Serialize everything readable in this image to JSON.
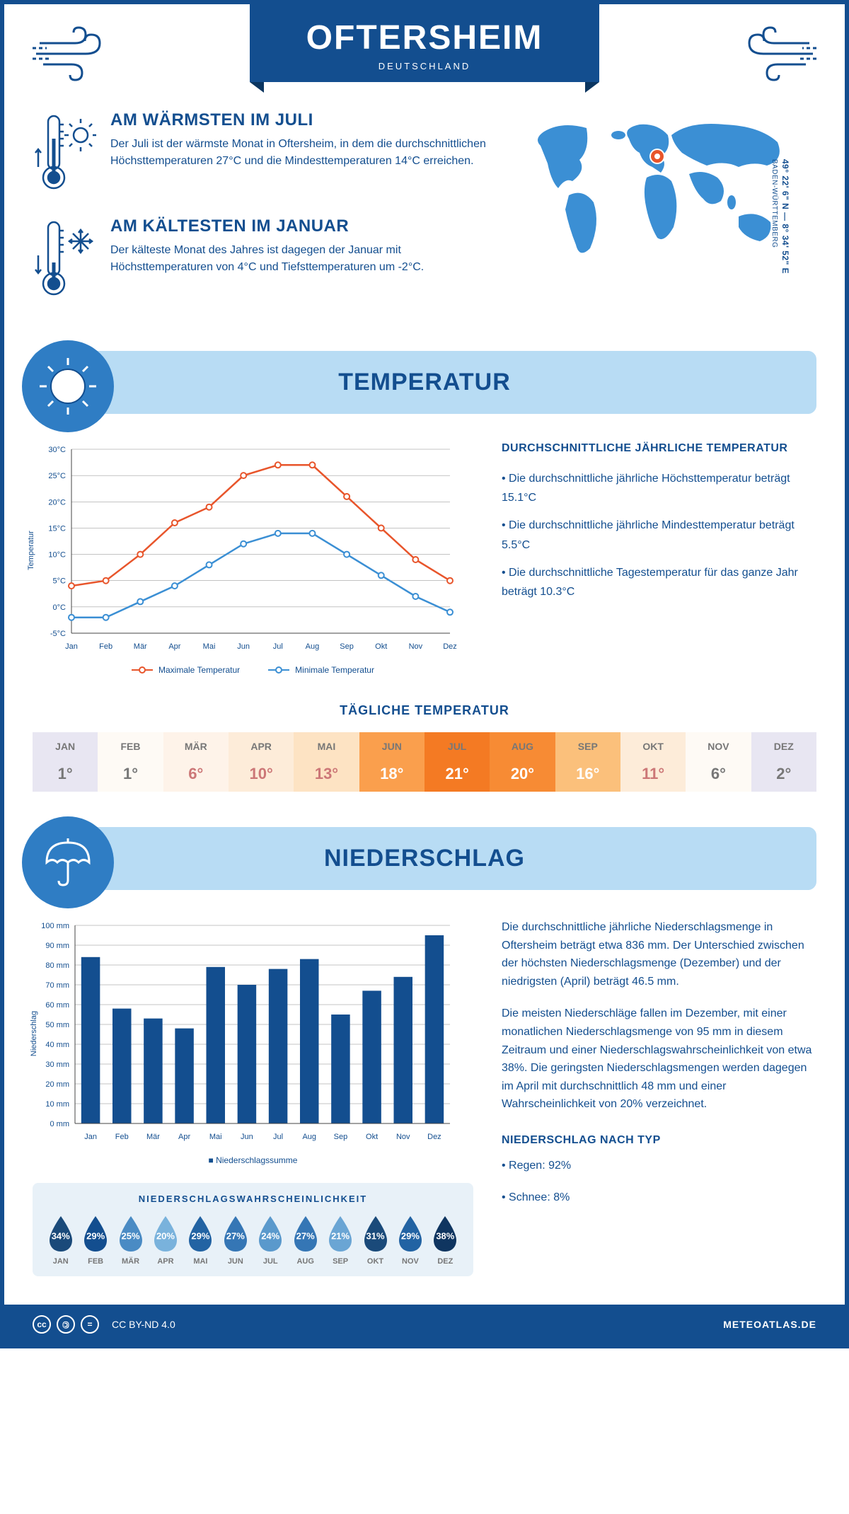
{
  "header": {
    "city": "OFTERSHEIM",
    "country": "DEUTSCHLAND"
  },
  "coords": {
    "line": "49° 22' 6\" N — 8° 34' 52\" E",
    "region": "BADEN-WÜRTTEMBERG"
  },
  "warm": {
    "title": "AM WÄRMSTEN IM JULI",
    "text": "Der Juli ist der wärmste Monat in Oftersheim, in dem die durchschnittlichen Höchsttemperaturen 27°C und die Mindesttemperaturen 14°C erreichen."
  },
  "cold": {
    "title": "AM KÄLTESTEN IM JANUAR",
    "text": "Der kälteste Monat des Jahres ist dagegen der Januar mit Höchsttemperaturen von 4°C und Tiefsttemperaturen um -2°C."
  },
  "sections": {
    "temp": "TEMPERATUR",
    "precip": "NIEDERSCHLAG"
  },
  "temp_chart": {
    "months": [
      "Jan",
      "Feb",
      "Mär",
      "Apr",
      "Mai",
      "Jun",
      "Jul",
      "Aug",
      "Sep",
      "Okt",
      "Nov",
      "Dez"
    ],
    "max": [
      4,
      5,
      10,
      16,
      19,
      25,
      27,
      27,
      21,
      15,
      9,
      5
    ],
    "min": [
      -2,
      -2,
      1,
      4,
      8,
      12,
      14,
      14,
      10,
      6,
      2,
      -1
    ],
    "ymin": -5,
    "ymax": 30,
    "ystep": 5,
    "max_color": "#e8552b",
    "min_color": "#3b8fd4",
    "axis_color": "#444",
    "grid_color": "#888",
    "ylabel": "Temperatur",
    "legend_max": "Maximale Temperatur",
    "legend_min": "Minimale Temperatur"
  },
  "temp_text": {
    "title": "DURCHSCHNITTLICHE JÄHRLICHE TEMPERATUR",
    "b1": "• Die durchschnittliche jährliche Höchsttemperatur beträgt 15.1°C",
    "b2": "• Die durchschnittliche jährliche Mindesttemperatur beträgt 5.5°C",
    "b3": "• Die durchschnittliche Tagestemperatur für das ganze Jahr beträgt 10.3°C"
  },
  "daily": {
    "title": "TÄGLICHE TEMPERATUR",
    "months": [
      "JAN",
      "FEB",
      "MÄR",
      "APR",
      "MAI",
      "JUN",
      "JUL",
      "AUG",
      "SEP",
      "OKT",
      "NOV",
      "DEZ"
    ],
    "values": [
      "1°",
      "1°",
      "6°",
      "10°",
      "13°",
      "18°",
      "21°",
      "20°",
      "16°",
      "11°",
      "6°",
      "2°"
    ],
    "bg_colors": [
      "#e8e6f2",
      "#fefaf5",
      "#fef3e9",
      "#fdecd9",
      "#fde3c3",
      "#fa9f4d",
      "#f47a23",
      "#f78b34",
      "#fbc07b",
      "#fdecd9",
      "#fefaf5",
      "#e8e6f2"
    ],
    "fg_colors": [
      "#777",
      "#777",
      "#c77",
      "#c77",
      "#c77",
      "#fff",
      "#fff",
      "#fff",
      "#fff",
      "#c77",
      "#777",
      "#777"
    ]
  },
  "precip_chart": {
    "months": [
      "Jan",
      "Feb",
      "Mär",
      "Apr",
      "Mai",
      "Jun",
      "Jul",
      "Aug",
      "Sep",
      "Okt",
      "Nov",
      "Dez"
    ],
    "values": [
      84,
      58,
      53,
      48,
      79,
      70,
      78,
      83,
      55,
      67,
      74,
      95
    ],
    "ymax": 100,
    "ystep": 10,
    "bar_color": "#134e8f",
    "grid_color": "#888",
    "ylabel": "Niederschlag",
    "legend": "Niederschlagssumme"
  },
  "precip_text": {
    "p1": "Die durchschnittliche jährliche Niederschlagsmenge in Oftersheim beträgt etwa 836 mm. Der Unterschied zwischen der höchsten Niederschlagsmenge (Dezember) und der niedrigsten (April) beträgt 46.5 mm.",
    "p2": "Die meisten Niederschläge fallen im Dezember, mit einer monatlichen Niederschlagsmenge von 95 mm in diesem Zeitraum und einer Niederschlagswahrscheinlichkeit von etwa 38%. Die geringsten Niederschlagsmengen werden dagegen im April mit durchschnittlich 48 mm und einer Wahrscheinlichkeit von 20% verzeichnet.",
    "type_title": "NIEDERSCHLAG NACH TYP",
    "t1": "• Regen: 92%",
    "t2": "• Schnee: 8%"
  },
  "prob": {
    "title": "NIEDERSCHLAGSWAHRSCHEINLICHKEIT",
    "months": [
      "JAN",
      "FEB",
      "MÄR",
      "APR",
      "MAI",
      "JUN",
      "JUL",
      "AUG",
      "SEP",
      "OKT",
      "NOV",
      "DEZ"
    ],
    "values": [
      "34%",
      "29%",
      "25%",
      "20%",
      "29%",
      "27%",
      "24%",
      "27%",
      "21%",
      "31%",
      "29%",
      "38%"
    ],
    "colors": [
      "#1a4a7a",
      "#134e8f",
      "#4a8bc4",
      "#79b2dc",
      "#2263a3",
      "#3576b5",
      "#5a99cc",
      "#3576b5",
      "#6aa5d4",
      "#1a4a7a",
      "#2263a3",
      "#0f3560"
    ]
  },
  "footer": {
    "license": "CC BY-ND 4.0",
    "site": "METEOATLAS.DE"
  },
  "colors": {
    "primary": "#134e8f",
    "light": "#b8dcf4",
    "accent": "#2f7dc4",
    "map": "#3b8fd4"
  }
}
